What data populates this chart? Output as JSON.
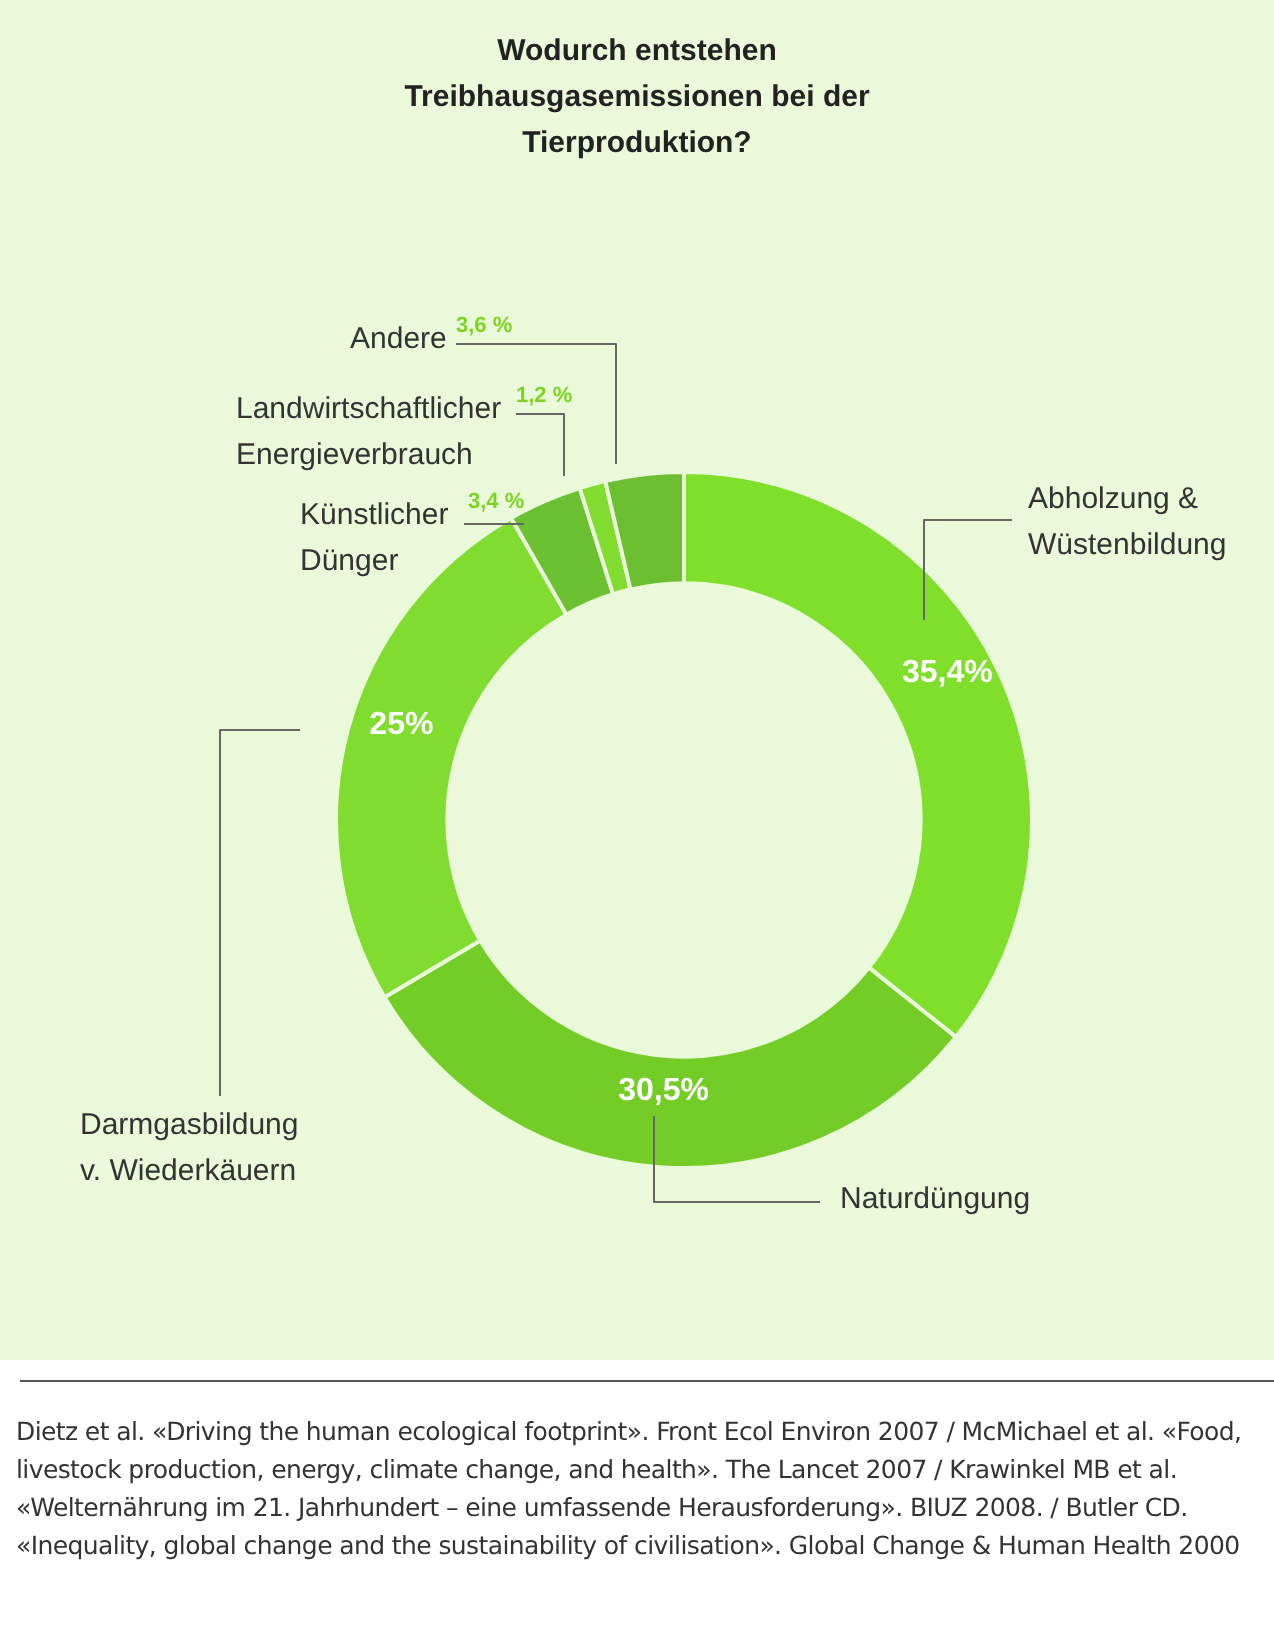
{
  "chart_data": {
    "type": "donut",
    "title": "Wodurch entstehen Treibhausgasemissionen bei der Tierproduktion?",
    "categories": [
      "Abholzung & Wüstenbildung",
      "Naturdüngung",
      "Darmgasbildung v. Wiederkäuern",
      "Künstlicher Dünger",
      "Landwirtschaftlicher Energieverbrauch",
      "Andere"
    ],
    "values": [
      35.4,
      30.5,
      25,
      3.4,
      1.2,
      3.6
    ],
    "value_labels": [
      "35,4%",
      "30,5%",
      "25%",
      "3,4 %",
      "1,2 %",
      "3,6 %"
    ],
    "colors": [
      "#7fdf2b",
      "#74cc26",
      "#80dc2e",
      "#6cc132",
      "#80dc2e",
      "#6cbf30"
    ],
    "legend": false,
    "annotations": [
      "Dietz et al. «Driving the human ecological footprint». Front Ecol Environ 2007 / McMichael et al. «Food, livestock production, energy, climate change, and health». The Lancet 2007 / Krawinkel MB et al. «Welternährung im 21. Jahrhundert – eine umfassende Herausforderung». BIUZ 2008. / Butler CD. «Inequality, global change and the sustainability of civilisation». Global Change & Human Health 2000"
    ]
  }
}
